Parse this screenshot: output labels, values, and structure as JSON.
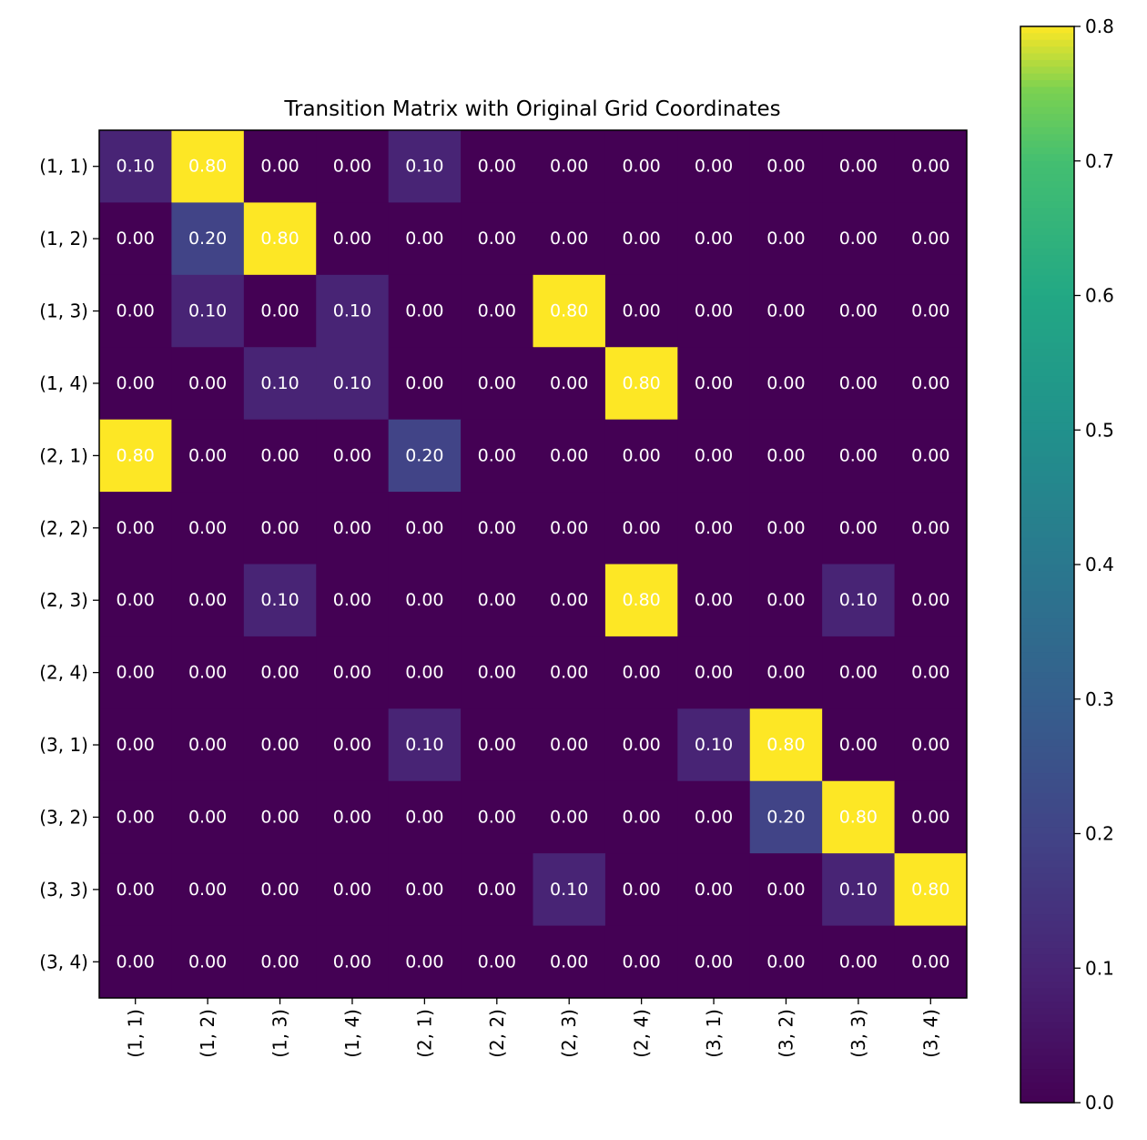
{
  "chart_data": {
    "type": "heatmap",
    "title": "Transition Matrix with Original Grid Coordinates",
    "xlabel": "",
    "ylabel": "",
    "row_labels": [
      "(1, 1)",
      "(1, 2)",
      "(1, 3)",
      "(1, 4)",
      "(2, 1)",
      "(2, 2)",
      "(2, 3)",
      "(2, 4)",
      "(3, 1)",
      "(3, 2)",
      "(3, 3)",
      "(3, 4)"
    ],
    "col_labels": [
      "(1, 1)",
      "(1, 2)",
      "(1, 3)",
      "(1, 4)",
      "(2, 1)",
      "(2, 2)",
      "(2, 3)",
      "(2, 4)",
      "(3, 1)",
      "(3, 2)",
      "(3, 3)",
      "(3, 4)"
    ],
    "values": [
      [
        0.1,
        0.8,
        0.0,
        0.0,
        0.1,
        0.0,
        0.0,
        0.0,
        0.0,
        0.0,
        0.0,
        0.0
      ],
      [
        0.0,
        0.2,
        0.8,
        0.0,
        0.0,
        0.0,
        0.0,
        0.0,
        0.0,
        0.0,
        0.0,
        0.0
      ],
      [
        0.0,
        0.1,
        0.0,
        0.1,
        0.0,
        0.0,
        0.8,
        0.0,
        0.0,
        0.0,
        0.0,
        0.0
      ],
      [
        0.0,
        0.0,
        0.1,
        0.1,
        0.0,
        0.0,
        0.0,
        0.8,
        0.0,
        0.0,
        0.0,
        0.0
      ],
      [
        0.8,
        0.0,
        0.0,
        0.0,
        0.2,
        0.0,
        0.0,
        0.0,
        0.0,
        0.0,
        0.0,
        0.0
      ],
      [
        0.0,
        0.0,
        0.0,
        0.0,
        0.0,
        0.0,
        0.0,
        0.0,
        0.0,
        0.0,
        0.0,
        0.0
      ],
      [
        0.0,
        0.0,
        0.1,
        0.0,
        0.0,
        0.0,
        0.0,
        0.8,
        0.0,
        0.0,
        0.1,
        0.0
      ],
      [
        0.0,
        0.0,
        0.0,
        0.0,
        0.0,
        0.0,
        0.0,
        0.0,
        0.0,
        0.0,
        0.0,
        0.0
      ],
      [
        0.0,
        0.0,
        0.0,
        0.0,
        0.1,
        0.0,
        0.0,
        0.0,
        0.1,
        0.8,
        0.0,
        0.0
      ],
      [
        0.0,
        0.0,
        0.0,
        0.0,
        0.0,
        0.0,
        0.0,
        0.0,
        0.0,
        0.2,
        0.8,
        0.0
      ],
      [
        0.0,
        0.0,
        0.0,
        0.0,
        0.0,
        0.0,
        0.1,
        0.0,
        0.0,
        0.0,
        0.1,
        0.8
      ],
      [
        0.0,
        0.0,
        0.0,
        0.0,
        0.0,
        0.0,
        0.0,
        0.0,
        0.0,
        0.0,
        0.0,
        0.0
      ]
    ],
    "cell_label_color": "#ffffff",
    "colormap": "viridis",
    "colorbar": {
      "vmin": 0.0,
      "vmax": 0.8,
      "ticks": [
        0.0,
        0.1,
        0.2,
        0.3,
        0.4,
        0.5,
        0.6,
        0.7,
        0.8
      ],
      "tick_labels": [
        "0.0",
        "0.1",
        "0.2",
        "0.3",
        "0.4",
        "0.5",
        "0.6",
        "0.7",
        "0.8"
      ]
    }
  }
}
